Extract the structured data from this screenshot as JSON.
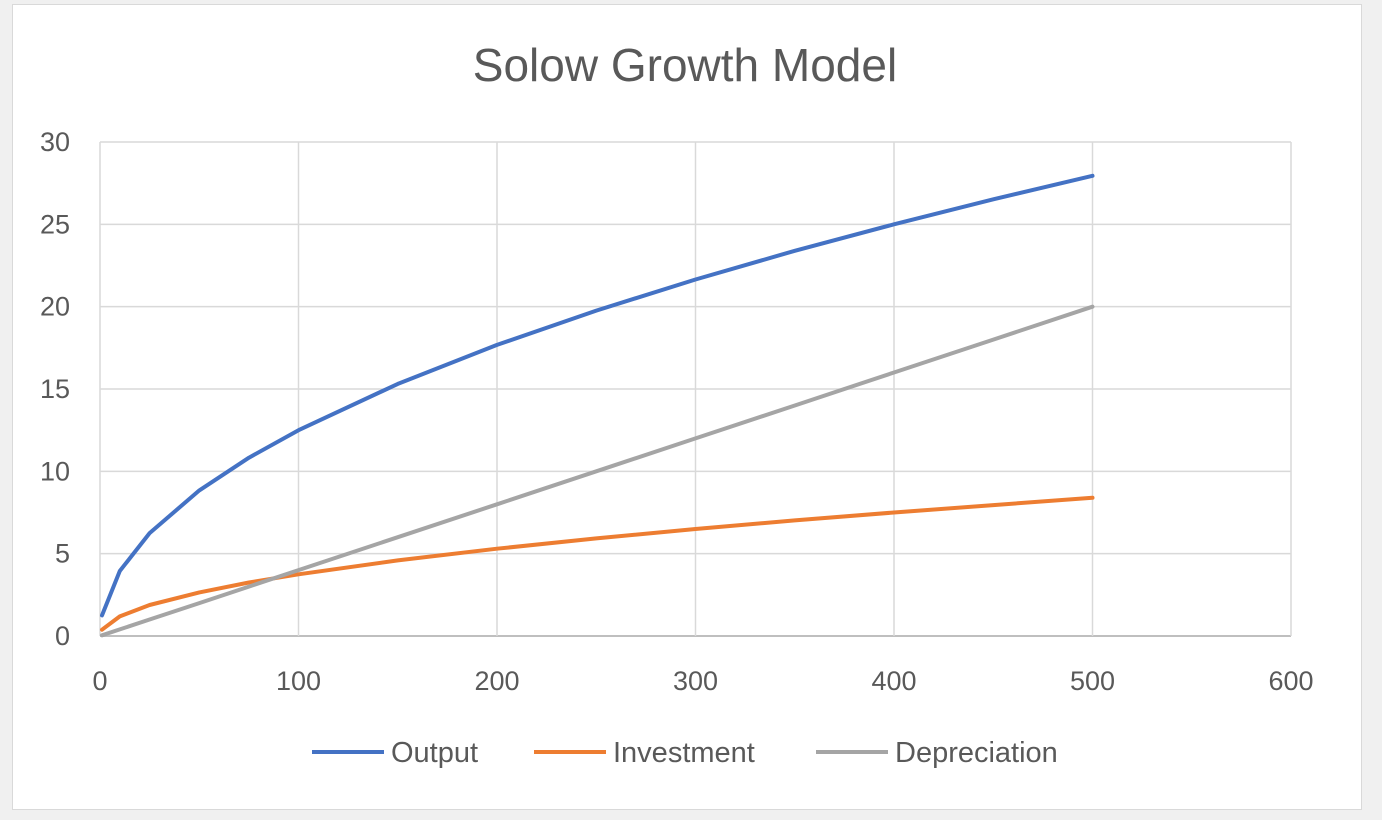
{
  "chart_data": {
    "type": "line",
    "title": "Solow Growth Model",
    "xlabel": "",
    "ylabel": "",
    "xlim": [
      0,
      600
    ],
    "ylim": [
      0,
      30
    ],
    "xticks": [
      "0",
      "100",
      "200",
      "300",
      "400",
      "500",
      "600"
    ],
    "yticks": [
      "0",
      "5",
      "10",
      "15",
      "20",
      "25",
      "30"
    ],
    "grid": true,
    "legend_position": "bottom",
    "x": [
      1,
      10,
      25,
      50,
      75,
      100,
      150,
      200,
      250,
      300,
      350,
      400,
      450,
      500
    ],
    "series": [
      {
        "name": "Output",
        "color": "#4472c4",
        "values": [
          1.25,
          3.95,
          6.25,
          8.84,
          10.83,
          12.5,
          15.31,
          17.68,
          19.76,
          21.65,
          23.39,
          25.0,
          26.52,
          27.95
        ]
      },
      {
        "name": "Investment",
        "color": "#ed7d31",
        "values": [
          0.38,
          1.19,
          1.88,
          2.65,
          3.25,
          3.75,
          4.59,
          5.3,
          5.93,
          6.5,
          7.02,
          7.5,
          7.95,
          8.39
        ]
      },
      {
        "name": "Depreciation",
        "color": "#a5a5a5",
        "values": [
          0.04,
          0.4,
          1.0,
          2.0,
          3.0,
          4.0,
          6.0,
          8.0,
          10.0,
          12.0,
          14.0,
          16.0,
          18.0,
          20.0
        ]
      }
    ]
  }
}
